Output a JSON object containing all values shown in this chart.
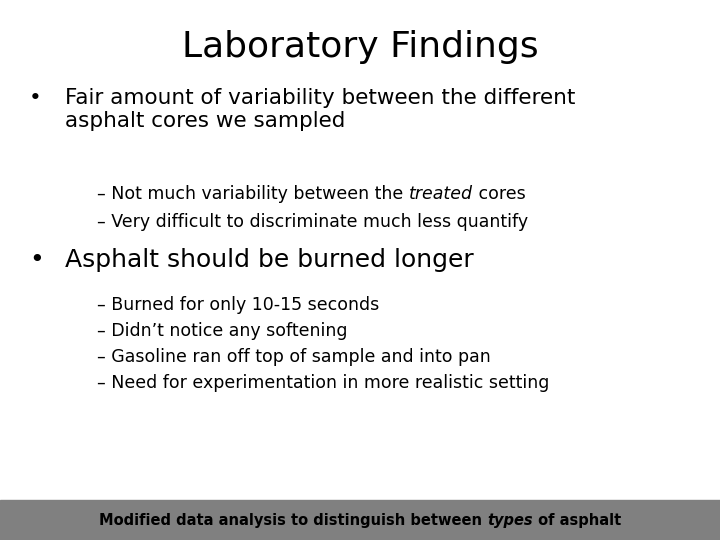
{
  "title": "Laboratory Findings",
  "background_color": "#ffffff",
  "title_fontsize": 26,
  "footer_text": "Modified data analysis to distinguish between ⁠types⁠ of asphalt",
  "footer_bg_color": "#808080",
  "footer_text_color": "#000000",
  "footer_fontsize": 10.5,
  "bullet1_text": "Fair amount of variability between the different\nasphalt cores we sampled",
  "bullet1_fontsize": 15.5,
  "sub1_fontsize": 12.5,
  "bullet2_text": "Asphalt should be burned longer",
  "bullet2_fontsize": 18,
  "sub2_fontsize": 12.5,
  "font_family": "DejaVu Sans"
}
